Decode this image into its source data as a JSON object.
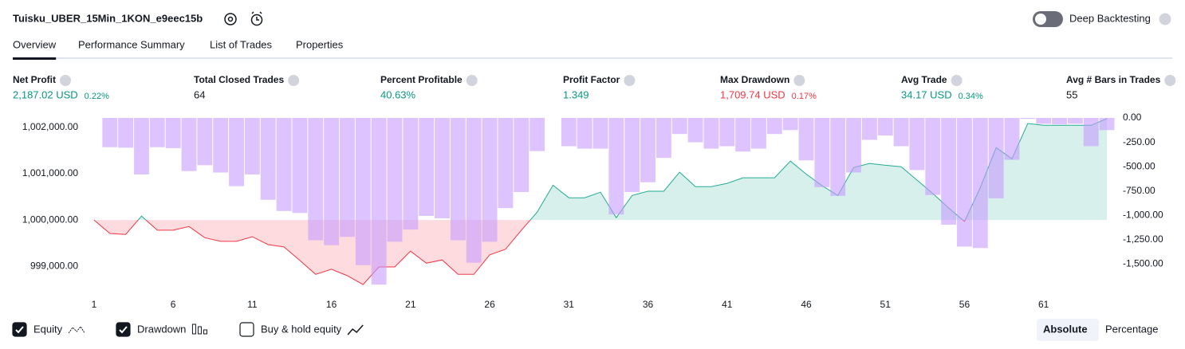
{
  "header": {
    "title": "Tuisku_UBER_15Min_1KON_e9eec15b",
    "deep_backtesting": "Deep Backtesting"
  },
  "tabs": [
    "Overview",
    "Performance Summary",
    "List of Trades",
    "Properties"
  ],
  "active_tab": 0,
  "metrics": [
    {
      "label": "Net Profit",
      "value": "2,187.02 USD",
      "percent": "0.22%",
      "color": "#089981"
    },
    {
      "label": "Total Closed Trades",
      "value": "64",
      "color": "#131722"
    },
    {
      "label": "Percent Profitable",
      "value": "40.63%",
      "color": "#089981"
    },
    {
      "label": "Profit Factor",
      "value": "1.349",
      "color": "#089981"
    },
    {
      "label": "Max Drawdown",
      "value": "1,709.74 USD",
      "percent": "0.17%",
      "color": "#f23645"
    },
    {
      "label": "Avg Trade",
      "value": "34.17 USD",
      "percent": "0.34%",
      "color": "#089981"
    },
    {
      "label": "Avg # Bars in Trades",
      "value": "55",
      "color": "#131722"
    }
  ],
  "chart_data": {
    "type": "combo",
    "grid": false,
    "x": [
      1,
      2,
      3,
      4,
      5,
      6,
      7,
      8,
      9,
      10,
      11,
      12,
      13,
      14,
      15,
      16,
      17,
      18,
      19,
      20,
      21,
      22,
      23,
      24,
      25,
      26,
      27,
      28,
      29,
      30,
      31,
      32,
      33,
      34,
      35,
      36,
      37,
      38,
      39,
      40,
      41,
      42,
      43,
      44,
      45,
      46,
      47,
      48,
      49,
      50,
      51,
      52,
      53,
      54,
      55,
      56,
      57,
      58,
      59,
      60,
      61,
      62,
      63,
      64,
      65
    ],
    "xlim": [
      0.5,
      65.5
    ],
    "xticks": [
      1,
      6,
      11,
      16,
      21,
      26,
      31,
      36,
      41,
      46,
      51,
      56,
      61
    ],
    "ylim": [
      998560,
      1002200
    ],
    "yticks": [
      {
        "value": 999000,
        "label": "999,000.00"
      },
      {
        "value": 1000000,
        "label": "1,000,000.00"
      },
      {
        "value": 1001000,
        "label": "1,001,000.00"
      },
      {
        "value": 1002000,
        "label": "1,002,000.00"
      }
    ],
    "y2lim": [
      -1733,
      0
    ],
    "y2ticks": [
      {
        "value": 0,
        "label": "0.00"
      },
      {
        "value": -250,
        "label": "-250.00"
      },
      {
        "value": -500,
        "label": "-500.00"
      },
      {
        "value": -750,
        "label": "-750.00"
      },
      {
        "value": -1000,
        "label": "-1,000.00"
      },
      {
        "value": -1250,
        "label": "-1,250.00"
      },
      {
        "value": -1500,
        "label": "-1,500.00"
      }
    ],
    "series": [
      {
        "name": "Equity",
        "type": "area",
        "visible": true,
        "color": "#22ab94",
        "negative_color": "#f23645",
        "values": [
          1000000,
          999710,
          999690,
          1000085,
          999780,
          999780,
          999860,
          999620,
          999540,
          999540,
          999640,
          999470,
          999420,
          999130,
          998830,
          998940,
          998800,
          998610,
          998990,
          998990,
          999330,
          999070,
          999140,
          998830,
          998830,
          999250,
          999370,
          999780,
          1000170,
          1000750,
          1000480,
          1000480,
          1000600,
          1000050,
          1000530,
          1000620,
          1000620,
          1001030,
          1000720,
          1000720,
          1000790,
          1000910,
          1000910,
          1000910,
          1001270,
          1000990,
          1000740,
          1000530,
          1001130,
          1001220,
          1001180,
          1001150,
          1000860,
          1000570,
          1000260,
          999970,
          1000700,
          1001560,
          1001320,
          1002080,
          1002040,
          1002040,
          1002040,
          1002040,
          1002187
        ]
      },
      {
        "name": "Drawdown",
        "type": "bar",
        "axis": "y2",
        "visible": true,
        "color": "#c79bff",
        "values": [
          0,
          -300,
          -305,
          -580,
          -300,
          -310,
          -545,
          -485,
          -560,
          -700,
          -580,
          -840,
          -955,
          -975,
          -1255,
          -1305,
          -1220,
          -1510,
          -1710,
          -1270,
          -1145,
          -1005,
          -1030,
          -1255,
          -1485,
          -1270,
          -925,
          -760,
          -340,
          0,
          -290,
          -315,
          -315,
          -990,
          -760,
          -660,
          -410,
          -165,
          -250,
          -315,
          -290,
          -345,
          -315,
          -165,
          -125,
          -435,
          -710,
          -800,
          -560,
          -225,
          -180,
          -290,
          -535,
          -790,
          -1095,
          -1320,
          -1335,
          -825,
          -430,
          -10,
          -60,
          -65,
          -60,
          -290,
          -125
        ]
      }
    ]
  },
  "chart_controls": {
    "buy_hold": "Buy & hold equity",
    "buy_hold_checked": false,
    "modes": [
      "Absolute",
      "Percentage"
    ],
    "active_mode": 0
  }
}
